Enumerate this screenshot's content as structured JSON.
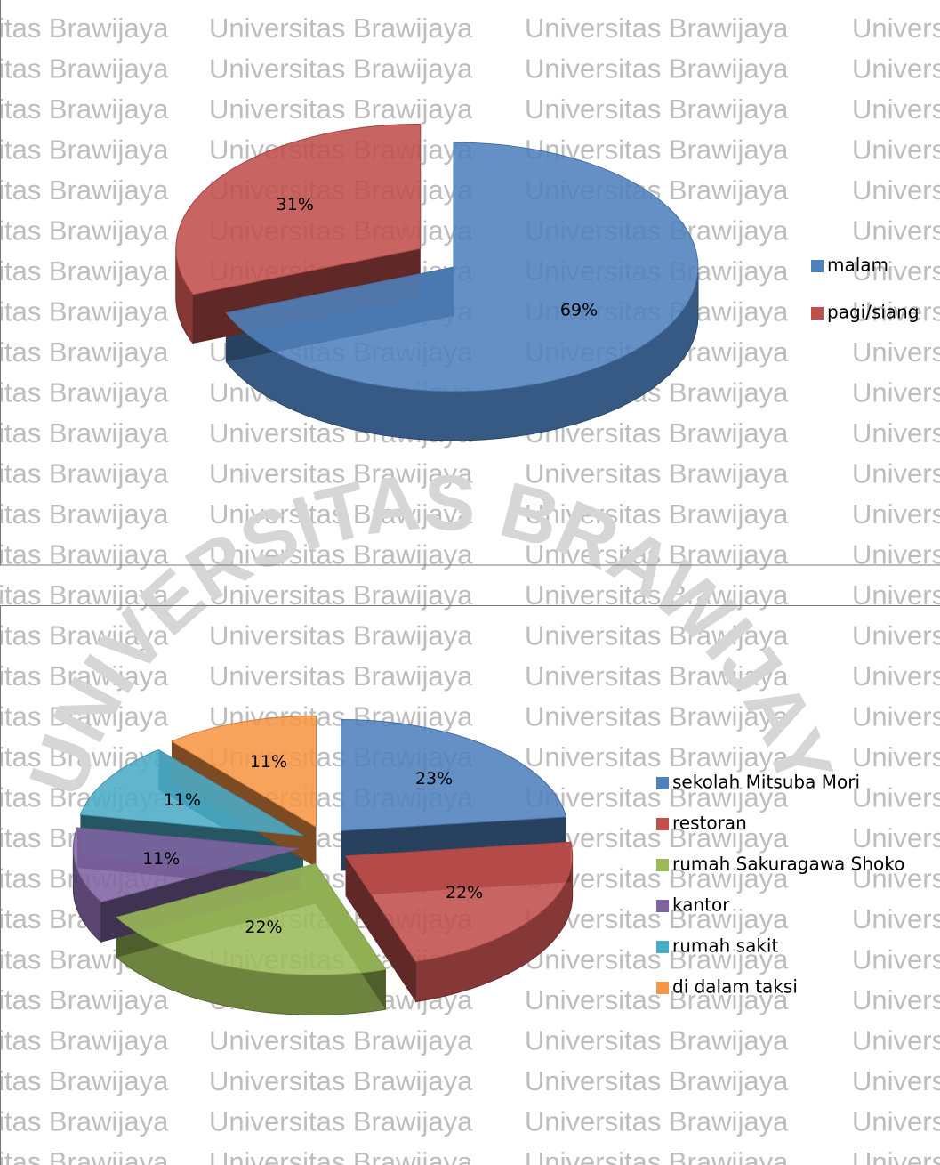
{
  "watermark": "Universitas Brawijaya",
  "logo_text": "UNIVERSITAS BRAWIJAYA",
  "chart_data": [
    {
      "type": "pie3d",
      "categories": [
        "malam",
        "pagi/siang"
      ],
      "values": [
        69,
        31
      ],
      "value_labels": [
        "69%",
        "31%"
      ],
      "colors": [
        "#4f81bd",
        "#c0504d"
      ],
      "explode": [
        0,
        1
      ],
      "legend": "right"
    },
    {
      "type": "pie3d",
      "categories": [
        "sekolah Mitsuba Mori",
        "restoran",
        "rumah Sakuragawa Shoko",
        "kantor",
        "rumah sakit",
        "di dalam taksi"
      ],
      "values": [
        23,
        22,
        22,
        11,
        11,
        11
      ],
      "value_labels": [
        "23%",
        "22%",
        "22%",
        "11%",
        "11%",
        "11%"
      ],
      "colors": [
        "#4f81bd",
        "#c0504d",
        "#9bbb59",
        "#8064a2",
        "#4bacc6",
        "#f79646"
      ],
      "explode": [
        1,
        1,
        1,
        1,
        1,
        1
      ],
      "legend": "right"
    }
  ]
}
